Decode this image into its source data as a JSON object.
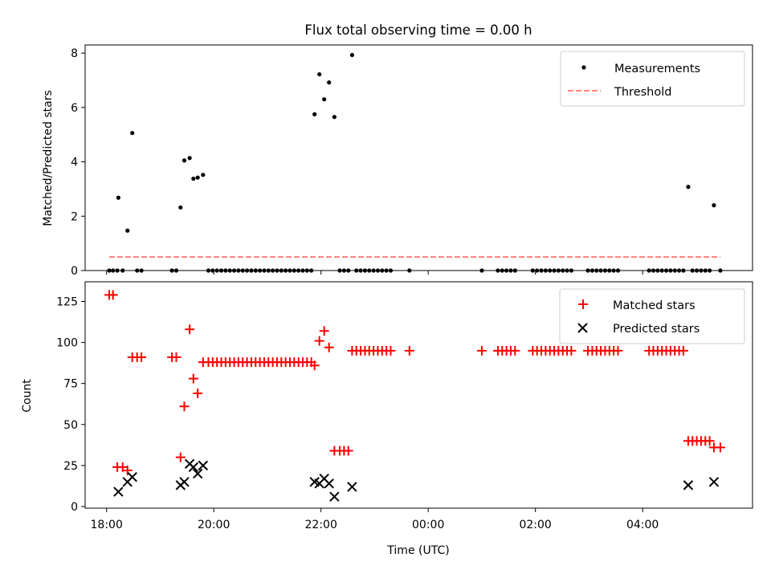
{
  "chart_data": [
    {
      "type": "scatter",
      "title": "Flux total observing time = 0.00 h",
      "ylabel": "Matched/Predicted stars",
      "xlabel": "",
      "ylim": [
        0,
        8.3
      ],
      "yticks": [
        0,
        2,
        4,
        6,
        8
      ],
      "xlim_hours": [
        17.6,
        30.05
      ],
      "xticks_hours": [
        18,
        20,
        22,
        24,
        26,
        28
      ],
      "legend_position": "upper right",
      "legend": [
        "Measurements",
        "Threshold"
      ],
      "series": [
        {
          "name": "Measurements",
          "marker": "dot",
          "color": "#000000",
          "points": [
            [
              18.05,
              0
            ],
            [
              18.12,
              0
            ],
            [
              18.2,
              0
            ],
            [
              18.22,
              2.68
            ],
            [
              18.3,
              0
            ],
            [
              18.39,
              1.47
            ],
            [
              18.48,
              5.06
            ],
            [
              18.57,
              0
            ],
            [
              18.65,
              0
            ],
            [
              19.22,
              0
            ],
            [
              19.3,
              0
            ],
            [
              19.38,
              2.32
            ],
            [
              19.45,
              4.05
            ],
            [
              19.55,
              4.14
            ],
            [
              19.62,
              3.38
            ],
            [
              19.7,
              3.42
            ],
            [
              19.8,
              3.52
            ],
            [
              19.9,
              0
            ],
            [
              19.98,
              0
            ],
            [
              20.06,
              0
            ],
            [
              20.14,
              0
            ],
            [
              20.22,
              0
            ],
            [
              20.3,
              0
            ],
            [
              20.38,
              0
            ],
            [
              20.46,
              0
            ],
            [
              20.54,
              0
            ],
            [
              20.62,
              0
            ],
            [
              20.7,
              0
            ],
            [
              20.78,
              0
            ],
            [
              20.86,
              0
            ],
            [
              20.94,
              0
            ],
            [
              21.02,
              0
            ],
            [
              21.1,
              0
            ],
            [
              21.18,
              0
            ],
            [
              21.26,
              0
            ],
            [
              21.34,
              0
            ],
            [
              21.42,
              0
            ],
            [
              21.5,
              0
            ],
            [
              21.58,
              0
            ],
            [
              21.66,
              0
            ],
            [
              21.74,
              0
            ],
            [
              21.82,
              0
            ],
            [
              21.88,
              5.75
            ],
            [
              21.97,
              7.22
            ],
            [
              22.06,
              6.3
            ],
            [
              22.15,
              6.92
            ],
            [
              22.25,
              5.65
            ],
            [
              22.35,
              0
            ],
            [
              22.43,
              0
            ],
            [
              22.51,
              0
            ],
            [
              22.58,
              7.93
            ],
            [
              22.66,
              0
            ],
            [
              22.74,
              0
            ],
            [
              22.82,
              0
            ],
            [
              22.9,
              0
            ],
            [
              22.98,
              0
            ],
            [
              23.06,
              0
            ],
            [
              23.14,
              0
            ],
            [
              23.22,
              0
            ],
            [
              23.3,
              0
            ],
            [
              23.65,
              0
            ],
            [
              25.0,
              0
            ],
            [
              25.3,
              0
            ],
            [
              25.38,
              0
            ],
            [
              25.46,
              0
            ],
            [
              25.54,
              0
            ],
            [
              25.62,
              0
            ],
            [
              25.95,
              0
            ],
            [
              26.03,
              0
            ],
            [
              26.11,
              0
            ],
            [
              26.19,
              0
            ],
            [
              26.27,
              0
            ],
            [
              26.35,
              0
            ],
            [
              26.43,
              0
            ],
            [
              26.51,
              0
            ],
            [
              26.59,
              0
            ],
            [
              26.67,
              0
            ],
            [
              26.98,
              0
            ],
            [
              27.06,
              0
            ],
            [
              27.14,
              0
            ],
            [
              27.22,
              0
            ],
            [
              27.3,
              0
            ],
            [
              27.38,
              0
            ],
            [
              27.46,
              0
            ],
            [
              27.54,
              0
            ],
            [
              28.12,
              0
            ],
            [
              28.2,
              0
            ],
            [
              28.28,
              0
            ],
            [
              28.36,
              0
            ],
            [
              28.44,
              0
            ],
            [
              28.52,
              0
            ],
            [
              28.6,
              0
            ],
            [
              28.68,
              0
            ],
            [
              28.76,
              0
            ],
            [
              28.85,
              3.08
            ],
            [
              28.93,
              0
            ],
            [
              29.01,
              0
            ],
            [
              29.09,
              0
            ],
            [
              29.17,
              0
            ],
            [
              29.25,
              0
            ],
            [
              29.33,
              2.4
            ],
            [
              29.45,
              0
            ]
          ]
        },
        {
          "name": "Threshold",
          "style": "dashed",
          "color": "#ff7f7f",
          "x_range_hours": [
            18.05,
            29.45
          ],
          "value": 0.5
        }
      ]
    },
    {
      "type": "scatter",
      "title": "",
      "ylabel": "Count",
      "xlabel": "Time (UTC)",
      "ylim": [
        -1,
        137
      ],
      "yticks": [
        0,
        25,
        50,
        75,
        100,
        125
      ],
      "xlim_hours": [
        17.6,
        30.05
      ],
      "xticks_hours": [
        18,
        20,
        22,
        24,
        26,
        28
      ],
      "xtick_labels": [
        "18:00",
        "20:00",
        "22:00",
        "00:00",
        "02:00",
        "04:00"
      ],
      "legend_position": "upper right",
      "legend": [
        "Matched stars",
        "Predicted stars"
      ],
      "series": [
        {
          "name": "Matched stars",
          "marker": "plus",
          "color": "#ff0000",
          "points": [
            [
              18.05,
              129
            ],
            [
              18.12,
              129
            ],
            [
              18.2,
              24
            ],
            [
              18.3,
              24
            ],
            [
              18.39,
              22
            ],
            [
              18.48,
              91
            ],
            [
              18.57,
              91
            ],
            [
              18.65,
              91
            ],
            [
              19.22,
              91
            ],
            [
              19.3,
              91
            ],
            [
              19.38,
              30
            ],
            [
              19.45,
              61
            ],
            [
              19.55,
              108
            ],
            [
              19.62,
              78
            ],
            [
              19.7,
              69
            ],
            [
              19.8,
              88
            ],
            [
              19.9,
              88
            ],
            [
              19.98,
              88
            ],
            [
              20.06,
              88
            ],
            [
              20.14,
              88
            ],
            [
              20.22,
              88
            ],
            [
              20.3,
              88
            ],
            [
              20.38,
              88
            ],
            [
              20.46,
              88
            ],
            [
              20.54,
              88
            ],
            [
              20.62,
              88
            ],
            [
              20.7,
              88
            ],
            [
              20.78,
              88
            ],
            [
              20.86,
              88
            ],
            [
              20.94,
              88
            ],
            [
              21.02,
              88
            ],
            [
              21.1,
              88
            ],
            [
              21.18,
              88
            ],
            [
              21.26,
              88
            ],
            [
              21.34,
              88
            ],
            [
              21.42,
              88
            ],
            [
              21.5,
              88
            ],
            [
              21.58,
              88
            ],
            [
              21.66,
              88
            ],
            [
              21.74,
              88
            ],
            [
              21.82,
              88
            ],
            [
              21.88,
              86
            ],
            [
              21.97,
              101
            ],
            [
              22.06,
              107
            ],
            [
              22.15,
              97
            ],
            [
              22.25,
              34
            ],
            [
              22.35,
              34
            ],
            [
              22.43,
              34
            ],
            [
              22.51,
              34
            ],
            [
              22.58,
              95
            ],
            [
              22.66,
              95
            ],
            [
              22.74,
              95
            ],
            [
              22.82,
              95
            ],
            [
              22.9,
              95
            ],
            [
              22.98,
              95
            ],
            [
              23.06,
              95
            ],
            [
              23.14,
              95
            ],
            [
              23.22,
              95
            ],
            [
              23.3,
              95
            ],
            [
              23.65,
              95
            ],
            [
              25.0,
              95
            ],
            [
              25.3,
              95
            ],
            [
              25.38,
              95
            ],
            [
              25.46,
              95
            ],
            [
              25.54,
              95
            ],
            [
              25.62,
              95
            ],
            [
              25.95,
              95
            ],
            [
              26.03,
              95
            ],
            [
              26.11,
              95
            ],
            [
              26.19,
              95
            ],
            [
              26.27,
              95
            ],
            [
              26.35,
              95
            ],
            [
              26.43,
              95
            ],
            [
              26.51,
              95
            ],
            [
              26.59,
              95
            ],
            [
              26.67,
              95
            ],
            [
              26.98,
              95
            ],
            [
              27.06,
              95
            ],
            [
              27.14,
              95
            ],
            [
              27.22,
              95
            ],
            [
              27.3,
              95
            ],
            [
              27.38,
              95
            ],
            [
              27.46,
              95
            ],
            [
              27.54,
              95
            ],
            [
              28.12,
              95
            ],
            [
              28.2,
              95
            ],
            [
              28.28,
              95
            ],
            [
              28.36,
              95
            ],
            [
              28.44,
              95
            ],
            [
              28.52,
              95
            ],
            [
              28.6,
              95
            ],
            [
              28.68,
              95
            ],
            [
              28.76,
              95
            ],
            [
              28.85,
              40
            ],
            [
              28.93,
              40
            ],
            [
              29.01,
              40
            ],
            [
              29.09,
              40
            ],
            [
              29.17,
              40
            ],
            [
              29.25,
              40
            ],
            [
              29.33,
              36
            ],
            [
              29.45,
              36
            ]
          ]
        },
        {
          "name": "Predicted stars",
          "marker": "x",
          "color": "#000000",
          "points": [
            [
              18.22,
              9
            ],
            [
              18.39,
              15
            ],
            [
              18.48,
              18
            ],
            [
              19.38,
              13
            ],
            [
              19.45,
              15
            ],
            [
              19.55,
              26
            ],
            [
              19.62,
              24
            ],
            [
              19.7,
              20
            ],
            [
              19.8,
              25
            ],
            [
              21.88,
              15
            ],
            [
              21.97,
              14
            ],
            [
              22.06,
              17
            ],
            [
              22.15,
              14
            ],
            [
              22.25,
              6
            ],
            [
              22.58,
              12
            ],
            [
              28.85,
              13
            ],
            [
              29.33,
              15
            ]
          ]
        }
      ]
    }
  ]
}
